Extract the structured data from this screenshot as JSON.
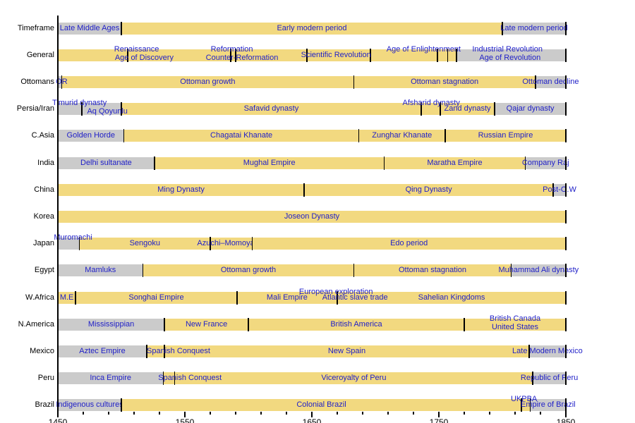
{
  "chart_data": {
    "type": "timeline-gantt",
    "title": "",
    "axis": {
      "start": 1450,
      "end": 1850,
      "major_tick_labels": [
        "1450",
        "1550",
        "1650",
        "1750",
        "1850"
      ],
      "major_tick_years": [
        1450,
        1550,
        1650,
        1750,
        1850
      ],
      "minor_tick_step_years": 20,
      "orientation": "horizontal"
    },
    "colors": {
      "yellow": "#F2D980",
      "gray": "#CBCBCB",
      "label_blue": "#2121C8",
      "axis_black": "#000000",
      "background": "#FFFFFF"
    },
    "color_legend_note": "yellow = early modern period span, gray = outside early modern period",
    "rows": [
      {
        "name": "Timeframe",
        "segments": [
          {
            "start": 1450,
            "end": 1500,
            "color": "gray",
            "label": "Late Middle Ages"
          },
          {
            "start": 1500,
            "end": 1800,
            "color": "yellow",
            "label": "Early modern period"
          },
          {
            "start": 1800,
            "end": 1850,
            "color": "gray",
            "label": "Late modern period"
          }
        ],
        "overlays": [],
        "extra_ticks": []
      },
      {
        "name": "General",
        "segments": [
          {
            "start": 1450,
            "end": 1586,
            "color": "yellow",
            "label": ""
          },
          {
            "start": 1586,
            "end": 1590,
            "color": "yellow",
            "label": ""
          },
          {
            "start": 1590,
            "end": 1646,
            "color": "yellow",
            "label": ""
          },
          {
            "start": 1646,
            "end": 1696,
            "color": "yellow",
            "label": ""
          },
          {
            "start": 1696,
            "end": 1749,
            "color": "yellow",
            "label": ""
          },
          {
            "start": 1749,
            "end": 1757,
            "color": "yellow",
            "label": ""
          },
          {
            "start": 1757,
            "end": 1764,
            "color": "yellow",
            "label": ""
          },
          {
            "start": 1764,
            "end": 1850,
            "color": "gray",
            "label": ""
          }
        ],
        "overlays": [
          {
            "text": "Renaissance",
            "year": 1512,
            "v": "top"
          },
          {
            "text": "Age of Discovery",
            "year": 1518,
            "v": "bot"
          },
          {
            "text": "Reformation",
            "year": 1587,
            "v": "top"
          },
          {
            "text": "Counter-Reformation",
            "year": 1595,
            "v": "bot"
          },
          {
            "text": "Scientific Revolution",
            "year": 1669,
            "v": "mid"
          },
          {
            "text": "Age of Enlightenment",
            "year": 1738,
            "v": "top"
          },
          {
            "text": "Industrial Revolution",
            "year": 1804,
            "v": "top"
          },
          {
            "text": "Age of Revolution",
            "year": 1806,
            "v": "bot"
          }
        ],
        "extra_ticks": [
          1505
        ]
      },
      {
        "name": "Ottomans",
        "segments": [
          {
            "start": 1450,
            "end": 1453,
            "color": "gray",
            "label": ""
          },
          {
            "start": 1453,
            "end": 1683,
            "color": "yellow",
            "label": "Ottoman growth"
          },
          {
            "start": 1683,
            "end": 1826,
            "color": "yellow",
            "label": "Ottoman stagnation"
          },
          {
            "start": 1826,
            "end": 1850,
            "color": "gray",
            "label": "Ottoman decline"
          }
        ],
        "overlays": [
          {
            "text": "OR",
            "year": 1453,
            "v": "mid"
          }
        ],
        "extra_ticks": []
      },
      {
        "name": "Persia/Iran",
        "segments": [
          {
            "start": 1450,
            "end": 1500,
            "color": "gray",
            "label": ""
          },
          {
            "start": 1500,
            "end": 1736,
            "color": "yellow",
            "label": "Safavid dynasty"
          },
          {
            "start": 1736,
            "end": 1751,
            "color": "yellow",
            "label": ""
          },
          {
            "start": 1751,
            "end": 1794,
            "color": "yellow",
            "label": "Zand dynasty"
          },
          {
            "start": 1794,
            "end": 1850,
            "color": "gray",
            "label": "Qajar dynasty"
          }
        ],
        "overlays": [
          {
            "text": "Timurid dynasty",
            "year": 1467,
            "v": "top"
          },
          {
            "text": "Aq Qoyunlu",
            "year": 1489,
            "v": "bot"
          },
          {
            "text": "Afsharid dynasty",
            "year": 1744,
            "v": "top"
          }
        ],
        "extra_ticks": [
          1469
        ]
      },
      {
        "name": "C.Asia",
        "segments": [
          {
            "start": 1450,
            "end": 1502,
            "color": "gray",
            "label": "Golden Horde"
          },
          {
            "start": 1502,
            "end": 1687,
            "color": "yellow",
            "label": "Chagatai Khanate"
          },
          {
            "start": 1687,
            "end": 1755,
            "color": "yellow",
            "label": "Zunghar Khanate"
          },
          {
            "start": 1755,
            "end": 1850,
            "color": "yellow",
            "label": "Russian Empire"
          }
        ],
        "overlays": [],
        "extra_ticks": []
      },
      {
        "name": "India",
        "segments": [
          {
            "start": 1450,
            "end": 1526,
            "color": "gray",
            "label": "Delhi sultanate"
          },
          {
            "start": 1526,
            "end": 1707,
            "color": "yellow",
            "label": "Mughal Empire"
          },
          {
            "start": 1707,
            "end": 1818,
            "color": "yellow",
            "label": "Maratha Empire"
          },
          {
            "start": 1818,
            "end": 1850,
            "color": "gray",
            "label": "Company Raj"
          }
        ],
        "overlays": [],
        "extra_ticks": []
      },
      {
        "name": "China",
        "segments": [
          {
            "start": 1450,
            "end": 1644,
            "color": "yellow",
            "label": "Ming Dynasty"
          },
          {
            "start": 1644,
            "end": 1840,
            "color": "yellow",
            "label": "Qing Dynasty"
          },
          {
            "start": 1840,
            "end": 1850,
            "color": "gray",
            "label": "Post-O.W"
          }
        ],
        "overlays": [],
        "extra_ticks": []
      },
      {
        "name": "Korea",
        "segments": [
          {
            "start": 1450,
            "end": 1850,
            "color": "yellow",
            "label": "Joseon Dynasty"
          }
        ],
        "overlays": [],
        "extra_ticks": []
      },
      {
        "name": "Japan",
        "segments": [
          {
            "start": 1450,
            "end": 1467,
            "color": "gray",
            "label": ""
          },
          {
            "start": 1467,
            "end": 1570,
            "color": "yellow",
            "label": "Sengoku"
          },
          {
            "start": 1570,
            "end": 1603,
            "color": "yellow",
            "label": "Azuchi–Momoyama"
          },
          {
            "start": 1603,
            "end": 1850,
            "color": "yellow",
            "label": "Edo period"
          }
        ],
        "overlays": [
          {
            "text": "Muromachi",
            "year": 1462,
            "v": "top"
          }
        ],
        "extra_ticks": []
      },
      {
        "name": "Egypt",
        "segments": [
          {
            "start": 1450,
            "end": 1517,
            "color": "gray",
            "label": "Mamluks"
          },
          {
            "start": 1517,
            "end": 1683,
            "color": "yellow",
            "label": "Ottoman growth"
          },
          {
            "start": 1683,
            "end": 1807,
            "color": "yellow",
            "label": "Ottoman stagnation"
          },
          {
            "start": 1807,
            "end": 1850,
            "color": "gray",
            "label": "Muhammad Ali dynasty"
          }
        ],
        "overlays": [],
        "extra_ticks": []
      },
      {
        "name": "W.Africa",
        "segments": [
          {
            "start": 1450,
            "end": 1464,
            "color": "yellow",
            "label": "M.E"
          },
          {
            "start": 1464,
            "end": 1591,
            "color": "yellow",
            "label": "Songhai Empire"
          },
          {
            "start": 1591,
            "end": 1670,
            "color": "yellow",
            "label": "Mali Empire"
          },
          {
            "start": 1670,
            "end": 1850,
            "color": "yellow",
            "label": "Sahelian Kingdoms"
          }
        ],
        "overlays": [
          {
            "text": "European exploration",
            "year": 1669,
            "v": "top"
          },
          {
            "text": "Atlantic slave trade",
            "year": 1684,
            "v": "mid"
          }
        ],
        "extra_ticks": []
      },
      {
        "name": "N.America",
        "segments": [
          {
            "start": 1450,
            "end": 1534,
            "color": "gray",
            "label": "Mississippian"
          },
          {
            "start": 1534,
            "end": 1600,
            "color": "yellow",
            "label": "New France"
          },
          {
            "start": 1600,
            "end": 1770,
            "color": "yellow",
            "label": "British America"
          },
          {
            "start": 1770,
            "end": 1850,
            "color": "yellow",
            "label": ""
          }
        ],
        "overlays": [
          {
            "text": "British Canada",
            "year": 1810,
            "v": "top"
          },
          {
            "text": "United States",
            "year": 1810,
            "v": "bot"
          }
        ],
        "extra_ticks": []
      },
      {
        "name": "Mexico",
        "segments": [
          {
            "start": 1450,
            "end": 1520,
            "color": "gray",
            "label": "Aztec Empire"
          },
          {
            "start": 1520,
            "end": 1534,
            "color": "yellow",
            "label": ""
          },
          {
            "start": 1534,
            "end": 1821,
            "color": "yellow",
            "label": "New Spain"
          },
          {
            "start": 1821,
            "end": 1850,
            "color": "gray",
            "label": "Late Modern Mexico"
          }
        ],
        "overlays": [
          {
            "text": "Spanish Conquest",
            "year": 1545,
            "v": "mid"
          }
        ],
        "extra_ticks": []
      },
      {
        "name": "Peru",
        "segments": [
          {
            "start": 1450,
            "end": 1533,
            "color": "gray",
            "label": "Inca Empire"
          },
          {
            "start": 1533,
            "end": 1542,
            "color": "yellow",
            "label": ""
          },
          {
            "start": 1542,
            "end": 1824,
            "color": "yellow",
            "label": "Viceroyalty of Peru"
          },
          {
            "start": 1824,
            "end": 1850,
            "color": "gray",
            "label": "Republic of Peru"
          }
        ],
        "overlays": [
          {
            "text": "Spanish Conquest",
            "year": 1554,
            "v": "mid"
          }
        ],
        "extra_ticks": []
      },
      {
        "name": "Brazil",
        "segments": [
          {
            "start": 1450,
            "end": 1500,
            "color": "gray",
            "label": "Indigenous cultures"
          },
          {
            "start": 1500,
            "end": 1815,
            "color": "yellow",
            "label": "Colonial Brazil"
          },
          {
            "start": 1815,
            "end": 1822,
            "color": "yellow",
            "label": ""
          },
          {
            "start": 1822,
            "end": 1850,
            "color": "gray",
            "label": "Empire of Brazil"
          }
        ],
        "overlays": [
          {
            "text": "UKPBA",
            "year": 1817,
            "v": "top"
          }
        ],
        "extra_ticks": []
      }
    ]
  }
}
